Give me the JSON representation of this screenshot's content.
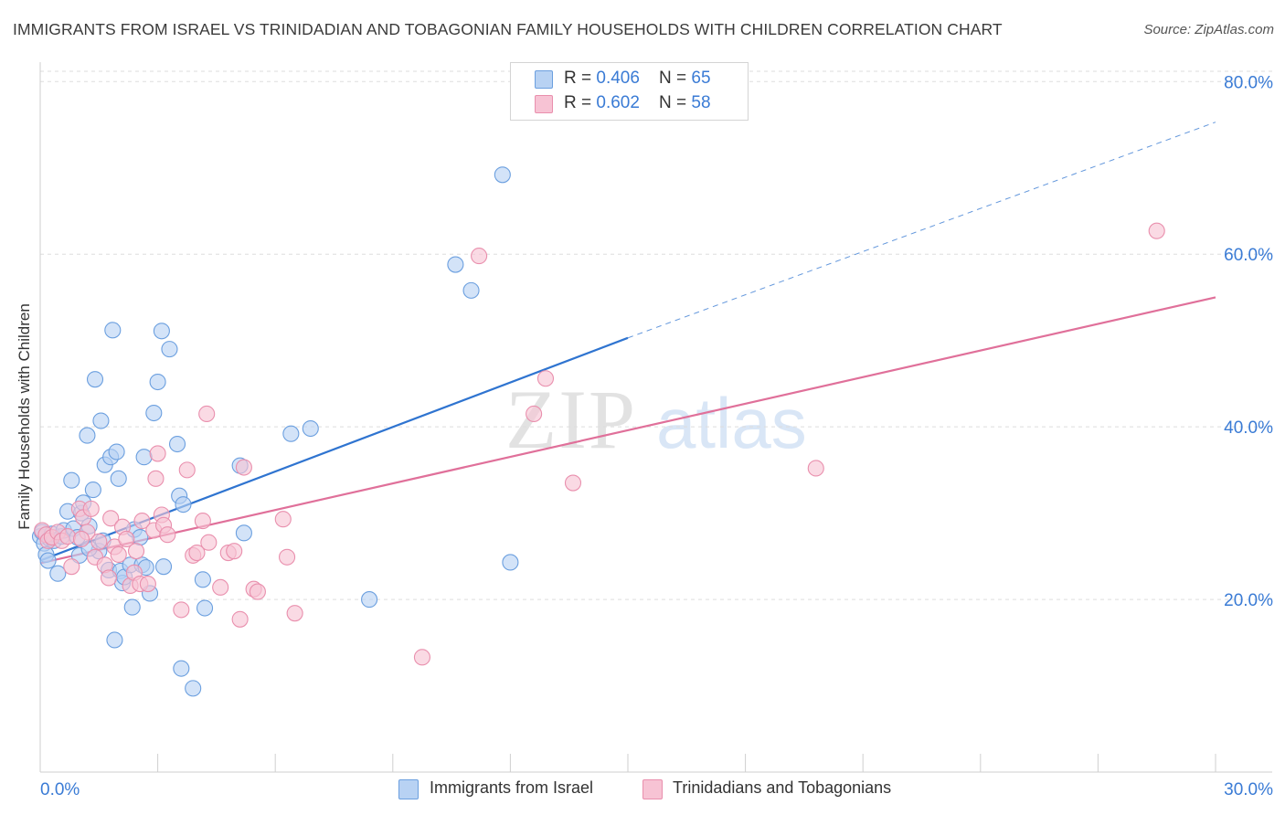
{
  "header": {
    "title": "IMMIGRANTS FROM ISRAEL VS TRINIDADIAN AND TOBAGONIAN FAMILY HOUSEHOLDS WITH CHILDREN CORRELATION CHART",
    "source": "Source: ZipAtlas.com"
  },
  "watermark": {
    "zip": "ZIP",
    "atlas": "atlas"
  },
  "legend_top": [
    {
      "r_label": "R = ",
      "r_value": "0.406",
      "n_label": "N = ",
      "n_value": "65"
    },
    {
      "r_label": "R = ",
      "r_value": "0.602",
      "n_label": "N = ",
      "n_value": "58"
    }
  ],
  "colors": {
    "blue_fill": "#b8d2f3",
    "blue_stroke": "#6b9fdf",
    "blue_line": "#2f74d0",
    "pink_fill": "#f7c3d4",
    "pink_stroke": "#e98fad",
    "pink_line": "#e0709a",
    "grid": "#dddddd",
    "tick_label": "#3a7bd5"
  },
  "chart_data": {
    "type": "scatter",
    "title": "IMMIGRANTS FROM ISRAEL VS TRINIDADIAN AND TOBAGONIAN FAMILY HOUSEHOLDS WITH CHILDREN CORRELATION CHART",
    "xlabel": "",
    "ylabel": "Family Households with Children",
    "xlim": [
      0,
      30
    ],
    "ylim": [
      0,
      85
    ],
    "x_tick_labels": [
      "0.0%",
      "30.0%"
    ],
    "y_ticks": [
      20,
      40,
      60,
      80
    ],
    "y_tick_labels": [
      "20.0%",
      "40.0%",
      "60.0%",
      "80.0%"
    ],
    "grid": true,
    "legend_position": "bottom",
    "series": [
      {
        "name": "Immigrants from Israel",
        "color": "#6b9fdf",
        "points": [
          [
            0.0,
            27.3
          ],
          [
            0.05,
            27.8
          ],
          [
            0.1,
            26.5
          ],
          [
            0.15,
            25.2
          ],
          [
            0.2,
            24.5
          ],
          [
            0.25,
            27.0
          ],
          [
            0.3,
            27.6
          ],
          [
            0.35,
            26.8
          ],
          [
            0.45,
            23.0
          ],
          [
            0.55,
            27.3
          ],
          [
            0.6,
            28.0
          ],
          [
            0.7,
            30.2
          ],
          [
            0.8,
            33.8
          ],
          [
            0.85,
            28.2
          ],
          [
            0.95,
            27.2
          ],
          [
            1.0,
            25.1
          ],
          [
            1.05,
            30.0
          ],
          [
            1.1,
            31.2
          ],
          [
            1.2,
            39.0
          ],
          [
            1.25,
            28.5
          ],
          [
            1.35,
            32.7
          ],
          [
            1.4,
            45.5
          ],
          [
            1.5,
            25.6
          ],
          [
            1.55,
            40.7
          ],
          [
            1.6,
            26.8
          ],
          [
            1.65,
            35.6
          ],
          [
            1.75,
            23.4
          ],
          [
            1.8,
            36.5
          ],
          [
            1.85,
            51.2
          ],
          [
            1.9,
            15.3
          ],
          [
            1.95,
            37.1
          ],
          [
            2.0,
            34.0
          ],
          [
            2.05,
            23.3
          ],
          [
            2.1,
            21.9
          ],
          [
            2.15,
            22.6
          ],
          [
            2.3,
            24.0
          ],
          [
            2.35,
            19.1
          ],
          [
            2.4,
            28.1
          ],
          [
            2.55,
            27.2
          ],
          [
            2.6,
            24.0
          ],
          [
            2.65,
            36.5
          ],
          [
            2.7,
            23.7
          ],
          [
            2.8,
            20.7
          ],
          [
            2.9,
            41.6
          ],
          [
            3.0,
            45.2
          ],
          [
            3.1,
            51.1
          ],
          [
            3.15,
            23.8
          ],
          [
            3.3,
            49.0
          ],
          [
            3.5,
            38.0
          ],
          [
            3.55,
            32.0
          ],
          [
            3.6,
            12.0
          ],
          [
            3.65,
            31.0
          ],
          [
            3.9,
            9.7
          ],
          [
            4.15,
            22.3
          ],
          [
            4.2,
            19.0
          ],
          [
            5.1,
            35.5
          ],
          [
            5.2,
            27.7
          ],
          [
            6.4,
            39.2
          ],
          [
            6.9,
            39.8
          ],
          [
            8.4,
            20.0
          ],
          [
            10.6,
            58.8
          ],
          [
            11.0,
            55.8
          ],
          [
            11.8,
            69.2
          ],
          [
            12.0,
            24.3
          ],
          [
            1.25,
            25.9
          ]
        ],
        "trend": {
          "x": [
            0,
            15
          ],
          "y": [
            24.5,
            50.3
          ],
          "dashed_to": [
            30,
            75.3
          ]
        }
      },
      {
        "name": "Trinidadians and Tobagonians",
        "color": "#e98fad",
        "points": [
          [
            0.05,
            28.0
          ],
          [
            0.15,
            27.5
          ],
          [
            0.2,
            26.8
          ],
          [
            0.3,
            27.2
          ],
          [
            0.45,
            27.8
          ],
          [
            0.55,
            26.8
          ],
          [
            0.7,
            27.3
          ],
          [
            0.8,
            23.8
          ],
          [
            1.0,
            30.5
          ],
          [
            1.1,
            29.5
          ],
          [
            1.2,
            27.8
          ],
          [
            1.3,
            30.5
          ],
          [
            1.4,
            24.9
          ],
          [
            1.5,
            26.7
          ],
          [
            1.65,
            24.0
          ],
          [
            1.75,
            22.5
          ],
          [
            1.8,
            29.4
          ],
          [
            1.9,
            26.1
          ],
          [
            2.0,
            25.2
          ],
          [
            2.1,
            28.4
          ],
          [
            2.2,
            27.0
          ],
          [
            2.3,
            21.6
          ],
          [
            2.4,
            23.1
          ],
          [
            2.45,
            25.6
          ],
          [
            2.55,
            21.8
          ],
          [
            2.6,
            29.1
          ],
          [
            2.75,
            21.8
          ],
          [
            2.9,
            28.0
          ],
          [
            2.95,
            34.0
          ],
          [
            3.0,
            36.9
          ],
          [
            3.1,
            29.8
          ],
          [
            3.15,
            28.6
          ],
          [
            3.25,
            27.5
          ],
          [
            3.6,
            18.8
          ],
          [
            3.75,
            35.0
          ],
          [
            3.9,
            25.1
          ],
          [
            4.0,
            25.4
          ],
          [
            4.15,
            29.1
          ],
          [
            4.25,
            41.5
          ],
          [
            4.3,
            26.6
          ],
          [
            4.6,
            21.4
          ],
          [
            4.8,
            25.4
          ],
          [
            4.95,
            25.6
          ],
          [
            5.1,
            17.7
          ],
          [
            5.2,
            35.3
          ],
          [
            5.45,
            21.2
          ],
          [
            5.55,
            20.9
          ],
          [
            6.2,
            29.3
          ],
          [
            6.3,
            24.9
          ],
          [
            6.5,
            18.4
          ],
          [
            9.75,
            13.3
          ],
          [
            11.2,
            59.8
          ],
          [
            12.9,
            45.6
          ],
          [
            12.6,
            41.5
          ],
          [
            13.6,
            33.5
          ],
          [
            19.8,
            35.2
          ],
          [
            28.5,
            62.7
          ],
          [
            1.05,
            27.0
          ]
        ],
        "trend": {
          "x": [
            0,
            30
          ],
          "y": [
            24.2,
            55.0
          ]
        }
      }
    ]
  }
}
